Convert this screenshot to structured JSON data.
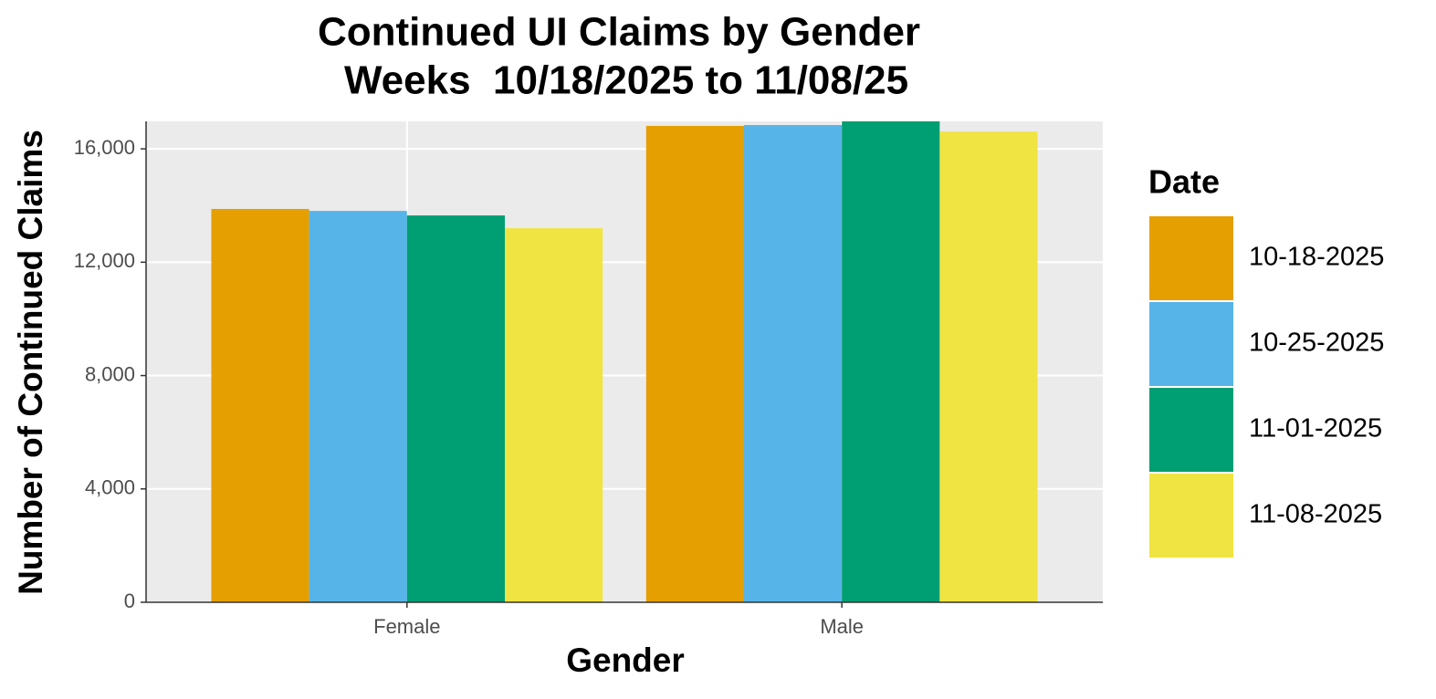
{
  "chart_data": {
    "type": "bar",
    "title": "Continued UI Claims by Gender",
    "subtitle": "Weeks  10/18/2025 to 11/08/25",
    "x_label": "Gender",
    "y_label": "Number of Continued Claims",
    "categories": [
      "Female",
      "Male"
    ],
    "series": [
      {
        "name": "10-18-2025",
        "color": "#E69F00",
        "values": [
          13880,
          16810
        ]
      },
      {
        "name": "10-25-2025",
        "color": "#56B4E9",
        "values": [
          13810,
          16840
        ]
      },
      {
        "name": "11-01-2025",
        "color": "#009E73",
        "values": [
          13650,
          16970
        ]
      },
      {
        "name": "11-08-2025",
        "color": "#F0E442",
        "values": [
          13200,
          16610
        ]
      }
    ],
    "legend_title": "Date",
    "ylim": [
      0,
      16970
    ],
    "yticks": [
      0,
      {
        "value": 4000,
        "label": "4,000"
      },
      {
        "value": 8000,
        "label": "8,000"
      },
      {
        "value": 12000,
        "label": "12,000"
      },
      {
        "value": 16000,
        "label": "16,000"
      }
    ],
    "grid": true
  }
}
